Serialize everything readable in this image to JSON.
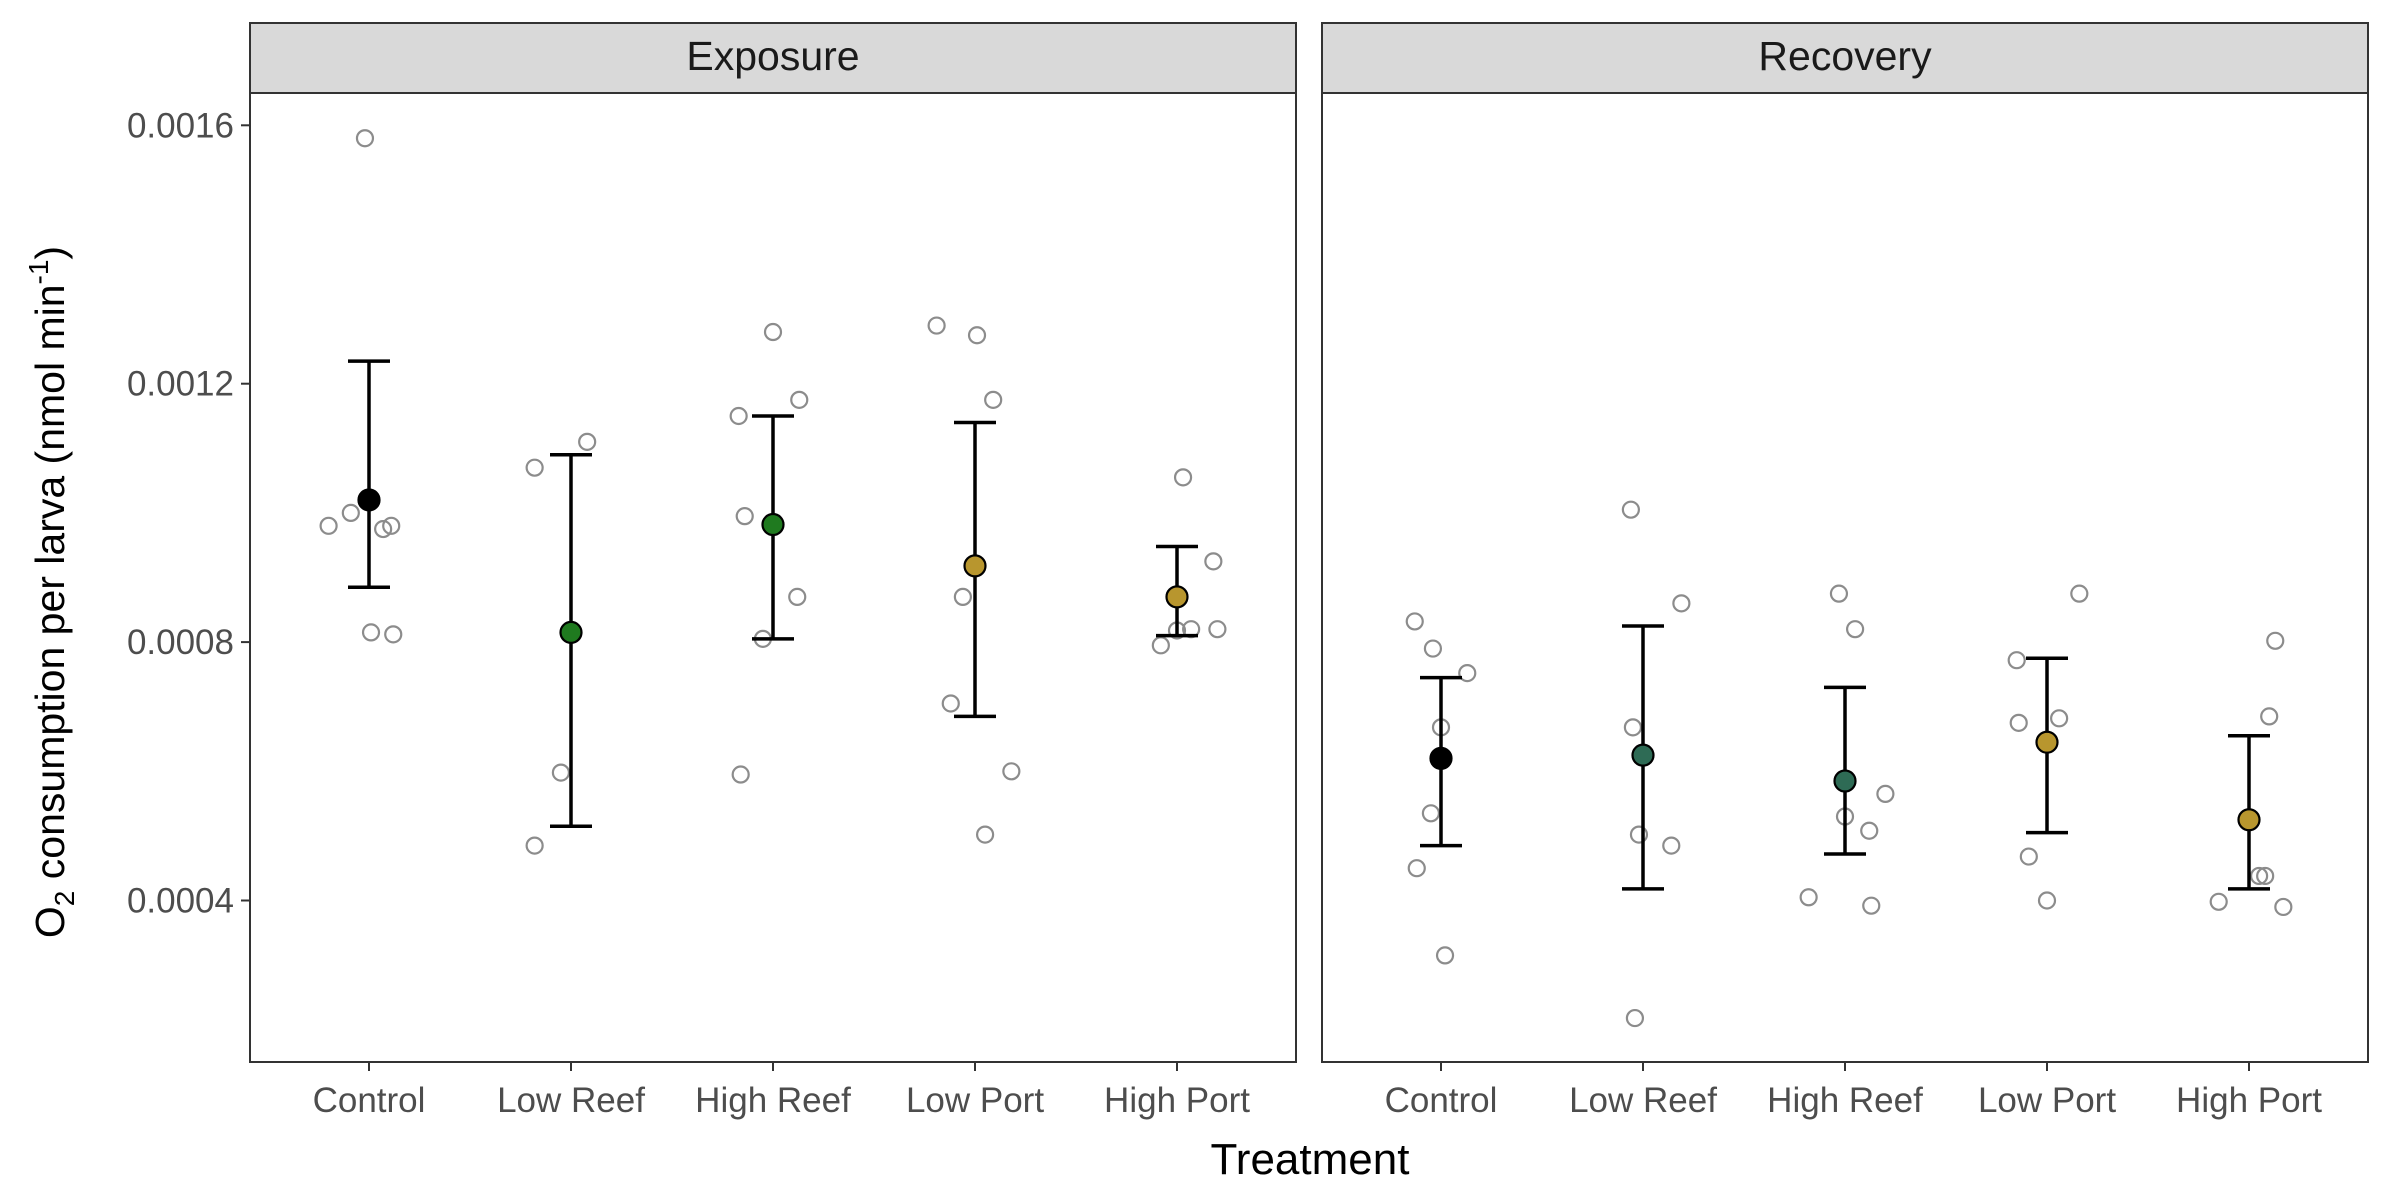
{
  "chart_data": {
    "type": "scatter",
    "xlabel": "Treatment",
    "ylabel": {
      "prefix": "O",
      "subscript": "2",
      "main": " consumption per larva (nmol min",
      "superscript": "-1",
      "suffix": ")"
    },
    "ylim": [
      0.00015,
      0.00165
    ],
    "yticks": [
      0.0004,
      0.0008,
      0.0012,
      0.0016
    ],
    "ytick_labels": [
      "0.0004",
      "0.0008",
      "0.0012",
      "0.0016"
    ],
    "categories": [
      "Control",
      "Low Reef",
      "High Reef",
      "Low Port",
      "High Port"
    ],
    "grid": false,
    "colors": {
      "Control": "#000000",
      "Low Reef": "#1f7a1f",
      "High Reef": "#1f7a1f",
      "Low Port": "#b8962e",
      "High Port": "#b8962e"
    },
    "recovery_colors": {
      "Control": "#000000",
      "Low Reef": "#2e6b55",
      "High Reef": "#2e6b55",
      "Low Port": "#b8962e",
      "High Port": "#b8962e"
    },
    "panels": [
      {
        "title": "Exposure",
        "groups": [
          {
            "category": "Control",
            "mean": 0.00102,
            "lower": 0.000885,
            "upper": 0.001235,
            "points": [
              [
                -0.2,
                0.00098
              ],
              [
                -0.09,
                0.001
              ],
              [
                -0.02,
                0.00158
              ],
              [
                0.01,
                0.000815
              ],
              [
                0.07,
                0.000975
              ],
              [
                0.11,
                0.00098
              ],
              [
                0.12,
                0.000812
              ]
            ]
          },
          {
            "category": "Low Reef",
            "mean": 0.000815,
            "lower": 0.000515,
            "upper": 0.00109,
            "points": [
              [
                -0.18,
                0.000485
              ],
              [
                -0.05,
                0.000598
              ],
              [
                -0.18,
                0.00107
              ],
              [
                0.08,
                0.00111
              ]
            ]
          },
          {
            "category": "High Reef",
            "mean": 0.000982,
            "lower": 0.000805,
            "upper": 0.00115,
            "points": [
              [
                -0.16,
                0.000595
              ],
              [
                -0.05,
                0.000805
              ],
              [
                -0.14,
                0.000995
              ],
              [
                0.12,
                0.00087
              ],
              [
                -0.17,
                0.00115
              ],
              [
                0.13,
                0.001175
              ],
              [
                0,
                0.00128
              ]
            ]
          },
          {
            "category": "Low Port",
            "mean": 0.000918,
            "lower": 0.000685,
            "upper": 0.00114,
            "points": [
              [
                0.05,
                0.000502
              ],
              [
                0.18,
                0.0006
              ],
              [
                -0.12,
                0.000705
              ],
              [
                -0.06,
                0.00087
              ],
              [
                0.09,
                0.001175
              ],
              [
                0.01,
                0.001275
              ],
              [
                -0.19,
                0.00129
              ]
            ]
          },
          {
            "category": "High Port",
            "mean": 0.00087,
            "lower": 0.00081,
            "upper": 0.000948,
            "points": [
              [
                -0.08,
                0.000795
              ],
              [
                0.0,
                0.000818
              ],
              [
                0.07,
                0.00082
              ],
              [
                0.2,
                0.00082
              ],
              [
                0.18,
                0.000925
              ],
              [
                0.03,
                0.001055
              ]
            ]
          }
        ]
      },
      {
        "title": "Recovery",
        "groups": [
          {
            "category": "Control",
            "mean": 0.00062,
            "lower": 0.000485,
            "upper": 0.000745,
            "points": [
              [
                -0.12,
                0.00045
              ],
              [
                0.02,
                0.000315
              ],
              [
                -0.05,
                0.000535
              ],
              [
                0.0,
                0.000668
              ],
              [
                0.13,
                0.000752
              ],
              [
                -0.04,
                0.00079
              ],
              [
                -0.13,
                0.000832
              ]
            ]
          },
          {
            "category": "Low Reef",
            "mean": 0.000625,
            "lower": 0.000418,
            "upper": 0.000825,
            "points": [
              [
                -0.04,
                0.000218
              ],
              [
                0.14,
                0.000485
              ],
              [
                -0.02,
                0.000502
              ],
              [
                -0.05,
                0.000668
              ],
              [
                0.19,
                0.00086
              ],
              [
                -0.06,
                0.001005
              ]
            ]
          },
          {
            "category": "High Reef",
            "mean": 0.000585,
            "lower": 0.000472,
            "upper": 0.00073,
            "points": [
              [
                -0.18,
                0.000405
              ],
              [
                0.13,
                0.000392
              ],
              [
                0.12,
                0.000508
              ],
              [
                0.0,
                0.00053
              ],
              [
                0.2,
                0.000565
              ],
              [
                0.05,
                0.00082
              ],
              [
                -0.03,
                0.000875
              ]
            ]
          },
          {
            "category": "Low Port",
            "mean": 0.000645,
            "lower": 0.000505,
            "upper": 0.000775,
            "points": [
              [
                0.0,
                0.0004
              ],
              [
                -0.09,
                0.000468
              ],
              [
                -0.14,
                0.000675
              ],
              [
                0.06,
                0.000682
              ],
              [
                -0.15,
                0.000772
              ],
              [
                0.16,
                0.000875
              ]
            ]
          },
          {
            "category": "High Port",
            "mean": 0.000525,
            "lower": 0.000418,
            "upper": 0.000655,
            "points": [
              [
                -0.15,
                0.000398
              ],
              [
                0.17,
                0.00039
              ],
              [
                0.05,
                0.000438
              ],
              [
                0.08,
                0.000438
              ],
              [
                0.1,
                0.000685
              ],
              [
                0.13,
                0.000802
              ]
            ]
          }
        ]
      }
    ]
  }
}
